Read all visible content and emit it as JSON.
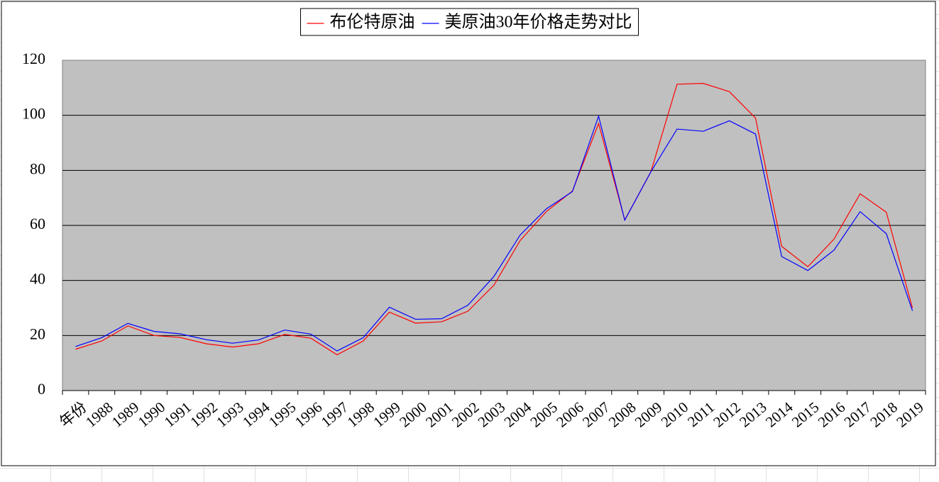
{
  "chart_data": {
    "type": "line",
    "categories": [
      "年份",
      "1988",
      "1989",
      "1990",
      "1991",
      "1992",
      "1993",
      "1994",
      "1995",
      "1996",
      "1997",
      "1998",
      "1999",
      "2000",
      "2001",
      "2002",
      "2003",
      "2004",
      "2005",
      "2006",
      "2007",
      "2008",
      "2009",
      "2010",
      "2011",
      "2012",
      "2013",
      "2014",
      "2015",
      "2016",
      "2017",
      "2018",
      "2019"
    ],
    "series": [
      {
        "name": "布伦特原油",
        "color": "#ff0000",
        "values": [
          15,
          18,
          23.5,
          20,
          19.3,
          17,
          15.8,
          17,
          20.4,
          19,
          13,
          18,
          28.5,
          24.5,
          25,
          28.8,
          38.3,
          54.5,
          65,
          72.5,
          97,
          62,
          79.5,
          111.3,
          111.6,
          108.6,
          99,
          52.4,
          45,
          55,
          71.5,
          64.8,
          30
        ]
      },
      {
        "name": "美原油30年价格走势对比",
        "color": "#0000ff",
        "values": [
          16,
          19.2,
          24.4,
          21.5,
          20.6,
          18.5,
          17.2,
          18.4,
          22,
          20.5,
          14.4,
          19.2,
          30.3,
          25.9,
          26.1,
          31,
          41.5,
          56.5,
          66,
          72.3,
          99.7,
          61.9,
          79.5,
          95,
          94.2,
          98,
          93.2,
          48.7,
          43.6,
          51,
          65,
          57,
          29
        ]
      }
    ],
    "ylim": [
      0,
      120
    ],
    "yticks": [
      0,
      20,
      40,
      60,
      80,
      100,
      120
    ],
    "grid": true,
    "legend": "top"
  }
}
